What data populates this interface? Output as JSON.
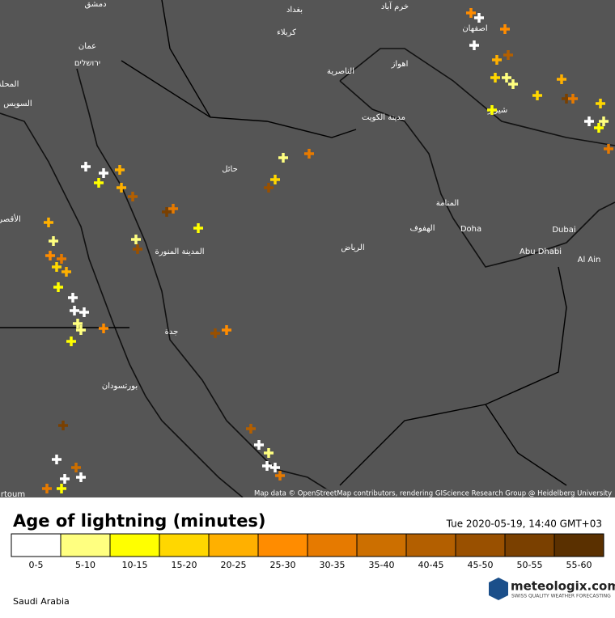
{
  "map": {
    "places": [
      "دمشق",
      "بغداد",
      "خرم آباد",
      "اصفهان",
      "كربلاء",
      "عمان",
      "ירושלים",
      "اهواز",
      "الناصرية",
      "المحلة",
      "السويس",
      "مدينة الكويت",
      "شيراز",
      "حائل",
      "المنامة",
      "الهفوف",
      "Doha",
      "Dubai",
      "الأقصر",
      "المدينة المنورة",
      "الرياض",
      "Abu Dhabi",
      "Al Ain",
      "جدة",
      "بورتسودان",
      "rtoum"
    ],
    "attribution": "Map data © OpenStreetMap contributors, rendering GIScience Research Group @ Heidelberg University"
  },
  "legend": {
    "title": "Age of lightning (minutes)",
    "timestamp": "Tue 2020-05-19, 14:40 GMT+03",
    "bins": [
      {
        "label": "0-5",
        "color": "#ffffff"
      },
      {
        "label": "5-10",
        "color": "#ffff80"
      },
      {
        "label": "10-15",
        "color": "#ffff00"
      },
      {
        "label": "15-20",
        "color": "#ffd700"
      },
      {
        "label": "20-25",
        "color": "#ffb000"
      },
      {
        "label": "25-30",
        "color": "#ff8c00"
      },
      {
        "label": "30-35",
        "color": "#e67a00"
      },
      {
        "label": "35-40",
        "color": "#cc6f00"
      },
      {
        "label": "40-45",
        "color": "#b35f00"
      },
      {
        "label": "45-50",
        "color": "#995000"
      },
      {
        "label": "50-55",
        "color": "#7a4000"
      },
      {
        "label": "55-60",
        "color": "#5a3000"
      }
    ]
  },
  "footer": {
    "region": "Saudi Arabia",
    "brand": "meteologix.com",
    "slogan": "SWISS QUALITY WEATHER FORECASTING"
  }
}
